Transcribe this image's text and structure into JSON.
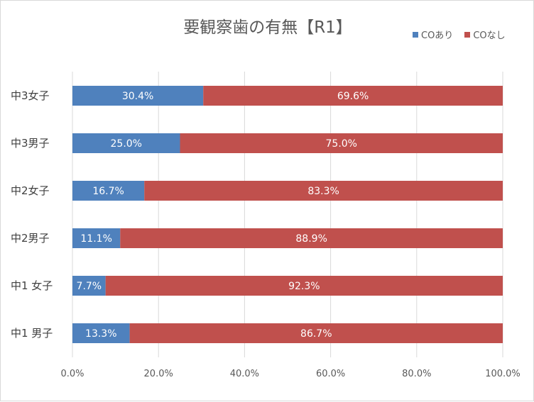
{
  "chart_data": {
    "type": "bar",
    "orientation": "horizontal",
    "stacked": true,
    "title": "要観察歯の有無【R1】",
    "categories": [
      "中3女子",
      "中3男子",
      "中2女子",
      "中2男子",
      "中1 女子",
      "中1 男子"
    ],
    "series": [
      {
        "name": "COあり",
        "color": "#4f81bd",
        "values": [
          30.4,
          25.0,
          16.7,
          11.1,
          7.7,
          13.3
        ],
        "labels": [
          "30.4%",
          "25.0%",
          "16.7%",
          "11.1%",
          "7.7%",
          "13.3%"
        ]
      },
      {
        "name": "COなし",
        "color": "#c0504d",
        "values": [
          69.6,
          75.0,
          83.3,
          88.9,
          92.3,
          86.7
        ],
        "labels": [
          "69.6%",
          "75.0%",
          "83.3%",
          "88.9%",
          "92.3%",
          "86.7%"
        ]
      }
    ],
    "xlim": [
      0,
      100
    ],
    "xticks": [
      0,
      20,
      40,
      60,
      80,
      100
    ],
    "xtick_labels": [
      "0.0%",
      "20.0%",
      "40.0%",
      "60.0%",
      "80.0%",
      "100.0%"
    ],
    "grid": true,
    "legend_position": "top-right",
    "xlabel": "",
    "ylabel": ""
  }
}
